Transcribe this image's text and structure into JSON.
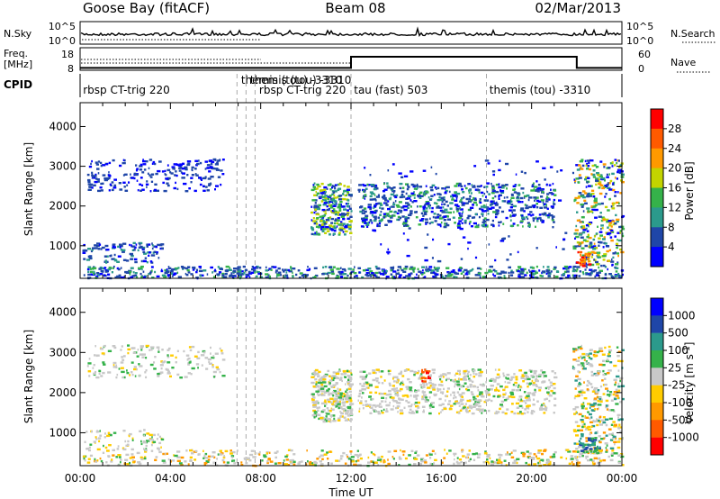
{
  "chart_data": {
    "type": "heatmap",
    "header": {
      "station": "Goose Bay (fitACF)",
      "beam": "Beam 08",
      "date": "02/Mar/2013"
    },
    "strip_nsky": {
      "left_label": "N.Sky",
      "left_ticks": [
        "10^5",
        "10^0"
      ],
      "right_label": "N.Search",
      "right_ticks": [
        "10^5",
        "10^0"
      ]
    },
    "strip_freq": {
      "left_label_1": "Freq.",
      "left_label_2": "[MHz]",
      "left_ticks": [
        "18",
        "8"
      ],
      "right_label": "Nave",
      "right_ticks": [
        "60",
        "0"
      ],
      "nave_steps": [
        [
          0,
          4
        ],
        [
          12,
          35
        ],
        [
          22,
          4
        ],
        [
          24,
          4
        ]
      ]
    },
    "strip_cpid": {
      "label": "CPID",
      "entries": [
        {
          "t": 0.05,
          "label": "rbsp CT-trig 220"
        },
        {
          "t": 7.05,
          "label": "themis (tou) -3310"
        },
        {
          "t": 7.45,
          "label": "themis (tou) -3310"
        },
        {
          "t": 7.85,
          "label": "rbsp CT-trig 220"
        },
        {
          "t": 12.05,
          "label": "tau (fast) 503"
        },
        {
          "t": 18.05,
          "label": "themis (tou) -3310"
        }
      ],
      "dividers": [
        6.95,
        7.35,
        7.75,
        12.0,
        18.0
      ]
    },
    "x_axis": {
      "label": "Time UT",
      "min": 0,
      "max": 24,
      "ticks": [
        {
          "v": 0,
          "label": "00:00"
        },
        {
          "v": 4,
          "label": "04:00"
        },
        {
          "v": 8,
          "label": "08:00"
        },
        {
          "v": 12,
          "label": "12:00"
        },
        {
          "v": 16,
          "label": "16:00"
        },
        {
          "v": 20,
          "label": "20:00"
        },
        {
          "v": 24,
          "label": "00:00"
        }
      ]
    },
    "y_axis": {
      "label": "Slant Range [km]",
      "min": 180,
      "max": 4600,
      "ticks": [
        {
          "v": 1000,
          "label": "1000"
        },
        {
          "v": 2000,
          "label": "2000"
        },
        {
          "v": 3000,
          "label": "3000"
        },
        {
          "v": 4000,
          "label": "4000"
        }
      ]
    },
    "panels": [
      {
        "quantity": "Power [dB]",
        "colorbar_label": "Power [dB]",
        "colorbar_ticks": [
          "4",
          "8",
          "12",
          "16",
          "20",
          "24",
          "28"
        ],
        "colors": [
          "#0000ff",
          "#1f46a8",
          "#2b9a8c",
          "#35b24a",
          "#c3d400",
          "#ff9900",
          "#ff5a00",
          "#ff0000"
        ],
        "regions": [
          {
            "t0": 0.3,
            "t1": 6.3,
            "r0": 2400,
            "r1": 3200,
            "n": 230,
            "c": [
              0,
              1,
              1
            ]
          },
          {
            "t0": 0.1,
            "t1": 3.6,
            "r0": 600,
            "r1": 1100,
            "n": 110,
            "c": [
              0,
              1,
              1,
              2
            ]
          },
          {
            "t0": 0.1,
            "t1": 24,
            "r0": 200,
            "r1": 500,
            "n": 650,
            "c": [
              0,
              1,
              1,
              2,
              3
            ]
          },
          {
            "t0": 10.2,
            "t1": 12.0,
            "r0": 1300,
            "r1": 2600,
            "n": 280,
            "c": [
              0,
              1,
              2,
              3,
              4
            ]
          },
          {
            "t0": 12.3,
            "t1": 21.0,
            "r0": 1500,
            "r1": 2600,
            "n": 650,
            "c": [
              0,
              1,
              1,
              2,
              3
            ]
          },
          {
            "t0": 12.5,
            "t1": 21.5,
            "r0": 600,
            "r1": 3200,
            "n": 130,
            "c": [
              0,
              1
            ]
          },
          {
            "t0": 21.8,
            "t1": 24,
            "r0": 500,
            "r1": 3200,
            "n": 360,
            "c": [
              0,
              1,
              2,
              3,
              4,
              5
            ]
          },
          {
            "t0": 21.9,
            "t1": 22.6,
            "r0": 500,
            "r1": 900,
            "n": 30,
            "c": [
              5,
              6,
              7
            ]
          }
        ]
      },
      {
        "quantity": "Velocity [m s^-1]",
        "colorbar_label": "Velocity [m s",
        "colorbar_label_sup": "-1",
        "colorbar_label_end": "]",
        "colorbar_ticks": [
          "1000",
          "500",
          "100",
          "25",
          "-25",
          "-100",
          "-500",
          "-1000"
        ],
        "colors": [
          "#0000ff",
          "#1f46a8",
          "#2b9a8c",
          "#35b24a",
          "#c8c8c8",
          "#ffcc00",
          "#ff9900",
          "#ff5a00",
          "#ff0000"
        ],
        "regions": [
          {
            "t0": 0.3,
            "t1": 6.3,
            "r0": 2400,
            "r1": 3200,
            "n": 170,
            "c": [
              4,
              4,
              4,
              3,
              5
            ]
          },
          {
            "t0": 0.1,
            "t1": 3.6,
            "r0": 600,
            "r1": 1100,
            "n": 80,
            "c": [
              4,
              4,
              3,
              5
            ]
          },
          {
            "t0": 0.1,
            "t1": 24,
            "r0": 200,
            "r1": 600,
            "n": 460,
            "c": [
              4,
              4,
              5,
              6,
              3
            ]
          },
          {
            "t0": 10.2,
            "t1": 12.0,
            "r0": 1300,
            "r1": 2600,
            "n": 300,
            "c": [
              4,
              4,
              4,
              5,
              3
            ]
          },
          {
            "t0": 12.3,
            "t1": 21.0,
            "r0": 1500,
            "r1": 2600,
            "n": 650,
            "c": [
              4,
              4,
              4,
              4,
              3,
              5
            ]
          },
          {
            "t0": 21.8,
            "t1": 24,
            "r0": 500,
            "r1": 3200,
            "n": 340,
            "c": [
              4,
              4,
              3,
              2,
              5,
              6
            ]
          },
          {
            "t0": 22.0,
            "t1": 23.0,
            "r0": 500,
            "r1": 900,
            "n": 40,
            "c": [
              1,
              2,
              3
            ]
          },
          {
            "t0": 15.0,
            "t1": 15.4,
            "r0": 2300,
            "r1": 2700,
            "n": 14,
            "c": [
              8,
              7
            ]
          }
        ]
      }
    ]
  }
}
